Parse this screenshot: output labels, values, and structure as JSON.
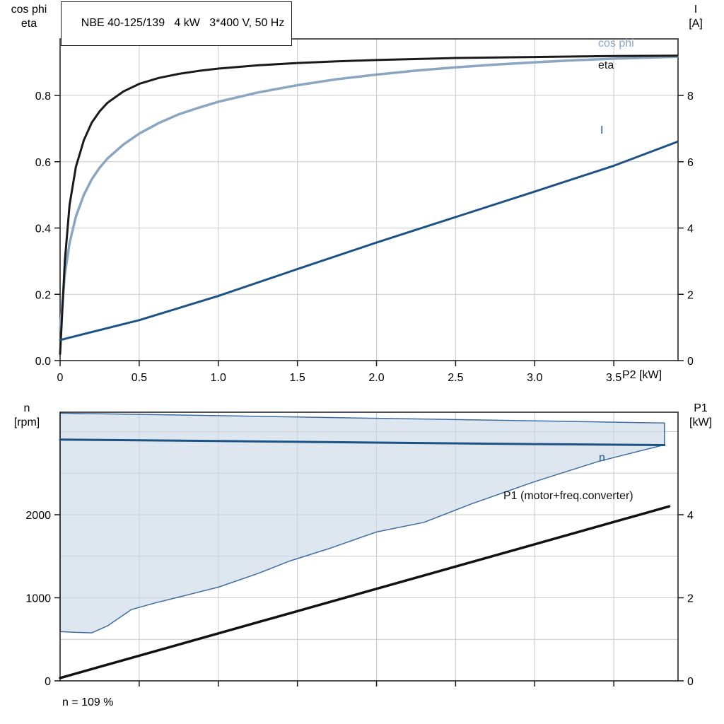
{
  "title": "NBE 40-125/139   4 kW   3*400 V, 50 Hz",
  "footnote": "n = 109 %",
  "axes": {
    "top_left_1": "cos phi",
    "top_left_2": "eta",
    "top_right_1": "I",
    "top_right_2": "[A]",
    "x_label": "P2 [kW]",
    "bottom_left_1": "n",
    "bottom_left_2": "[rpm]",
    "bottom_right_1": "P1",
    "bottom_right_2": "[kW]"
  },
  "curve_labels": {
    "cos_phi": "cos phi",
    "eta": "eta",
    "current": "I",
    "speed": "n",
    "p1": "P1 (motor+freq.converter)"
  },
  "colors": {
    "cos_phi": "#8aa6c1",
    "eta": "#1a1a1a",
    "current": "#1c5284",
    "speed": "#1c5284",
    "p1_line": "#111111",
    "area_fill": "#c8d7e6",
    "area_stroke": "#3d6d9e",
    "grid": "#c9c9c9",
    "frame": "#1a1a1a",
    "text": "#000000"
  },
  "chart_data": [
    {
      "id": "top",
      "type": "line",
      "title": "NBE 40-125/139   4 kW   3*400 V, 50 Hz",
      "xlabel": "P2 [kW]",
      "ylabel_left": "cos phi / eta",
      "ylabel_right": "I [A]",
      "xlim": [
        0,
        3.906
      ],
      "xticks": {
        "values": [
          0,
          0.5,
          1,
          1.5,
          2,
          2.5,
          3,
          3.5
        ],
        "labels": [
          "0",
          "0.5",
          "1.0",
          "1.5",
          "2.0",
          "2.5",
          "3.0",
          "3.5"
        ]
      },
      "ylim_left": [
        0,
        0.9707
      ],
      "yticks_left": {
        "values": [
          0,
          0.2,
          0.4,
          0.6,
          0.8
        ],
        "labels": [
          "0.0",
          "0.2",
          "0.4",
          "0.6",
          "0.8"
        ]
      },
      "ylim_right": [
        0,
        9.707
      ],
      "yticks_right": {
        "values": [
          0,
          2,
          4,
          6,
          8
        ],
        "labels": [
          "0",
          "2",
          "4",
          "6",
          "8"
        ]
      },
      "grid": true,
      "series": [
        {
          "name": "cos phi",
          "axis": "left",
          "color": "#8aa6c1",
          "width": 3.5,
          "points": [
            [
              0,
              0.09
            ],
            [
              0.03,
              0.26
            ],
            [
              0.06,
              0.355
            ],
            [
              0.1,
              0.435
            ],
            [
              0.15,
              0.5
            ],
            [
              0.2,
              0.547
            ],
            [
              0.25,
              0.582
            ],
            [
              0.3,
              0.61
            ],
            [
              0.4,
              0.652
            ],
            [
              0.5,
              0.685
            ],
            [
              0.625,
              0.717
            ],
            [
              0.75,
              0.743
            ],
            [
              0.875,
              0.763
            ],
            [
              1.0,
              0.781
            ],
            [
              1.25,
              0.809
            ],
            [
              1.5,
              0.831
            ],
            [
              1.75,
              0.849
            ],
            [
              2.0,
              0.863
            ],
            [
              2.25,
              0.875
            ],
            [
              2.5,
              0.885
            ],
            [
              2.75,
              0.893
            ],
            [
              3.0,
              0.9
            ],
            [
              3.25,
              0.906
            ],
            [
              3.5,
              0.911
            ],
            [
              3.7,
              0.914
            ],
            [
              3.9,
              0.917
            ]
          ]
        },
        {
          "name": "eta",
          "axis": "left",
          "color": "#1a1a1a",
          "width": 3,
          "points": [
            [
              0,
              0.02
            ],
            [
              0.03,
              0.3
            ],
            [
              0.06,
              0.47
            ],
            [
              0.1,
              0.585
            ],
            [
              0.15,
              0.665
            ],
            [
              0.2,
              0.718
            ],
            [
              0.25,
              0.752
            ],
            [
              0.3,
              0.778
            ],
            [
              0.4,
              0.812
            ],
            [
              0.5,
              0.835
            ],
            [
              0.625,
              0.853
            ],
            [
              0.75,
              0.865
            ],
            [
              0.875,
              0.874
            ],
            [
              1.0,
              0.881
            ],
            [
              1.25,
              0.891
            ],
            [
              1.5,
              0.898
            ],
            [
              1.75,
              0.903
            ],
            [
              2.0,
              0.907
            ],
            [
              2.5,
              0.913
            ],
            [
              3.0,
              0.916
            ],
            [
              3.5,
              0.919
            ],
            [
              3.9,
              0.92
            ]
          ]
        },
        {
          "name": "I",
          "axis": "right",
          "color": "#1c5284",
          "width": 3,
          "points": [
            [
              0,
              0.62
            ],
            [
              0.5,
              1.22
            ],
            [
              1.0,
              1.95
            ],
            [
              1.5,
              2.76
            ],
            [
              2.0,
              3.56
            ],
            [
              2.5,
              4.33
            ],
            [
              3.0,
              5.1
            ],
            [
              3.5,
              5.88
            ],
            [
              3.9,
              6.6
            ]
          ]
        }
      ]
    },
    {
      "id": "bottom",
      "type": "line",
      "xlabel": "",
      "ylabel_left": "n [rpm]",
      "ylabel_right": "P1 [kW]",
      "annotation": "n = 109 %",
      "xlim": [
        0,
        3.906
      ],
      "xticks": {
        "values": [
          0.5,
          1,
          1.5,
          2,
          2.5,
          3,
          3.5
        ],
        "labels": []
      },
      "ylim_left": [
        0,
        3234
      ],
      "yticks_left": {
        "values": [
          0,
          1000,
          2000
        ],
        "labels": [
          "0",
          "1000",
          "2000"
        ]
      },
      "ygrid_left": [
        500,
        1000,
        1500,
        2000,
        2500,
        3000
      ],
      "ylim_right": [
        0,
        6.468
      ],
      "yticks_right": {
        "values": [
          0,
          2,
          4
        ],
        "labels": [
          "0",
          "2",
          "4"
        ]
      },
      "grid": true,
      "area": {
        "name": "speed-operating-range",
        "axis": "left",
        "fill": "#c8d7e6",
        "fill_opacity": 0.6,
        "stroke": "#3d6d9e",
        "stroke_width": 1.5,
        "outline": [
          [
            0,
            3222
          ],
          [
            1.0,
            3192
          ],
          [
            2.0,
            3161
          ],
          [
            3.0,
            3130
          ],
          [
            3.82,
            3104
          ],
          [
            3.82,
            2842
          ],
          [
            3.4,
            2640
          ],
          [
            3.0,
            2398
          ],
          [
            2.6,
            2130
          ],
          [
            2.3,
            1908
          ],
          [
            2.0,
            1792
          ],
          [
            1.7,
            1592
          ],
          [
            1.45,
            1442
          ],
          [
            1.25,
            1292
          ],
          [
            1.0,
            1128
          ],
          [
            0.8,
            1032
          ],
          [
            0.6,
            938
          ],
          [
            0.45,
            858
          ],
          [
            0.3,
            662
          ],
          [
            0.2,
            578
          ],
          [
            0.1,
            584
          ],
          [
            0,
            594
          ]
        ]
      },
      "series": [
        {
          "name": "n",
          "axis": "left",
          "color": "#1c5284",
          "width": 3,
          "points": [
            [
              0,
              2905
            ],
            [
              1.0,
              2888
            ],
            [
              2.0,
              2868
            ],
            [
              3.0,
              2850
            ],
            [
              3.82,
              2838
            ]
          ]
        },
        {
          "name": "P1 (motor+freq.converter)",
          "axis": "right",
          "color": "#111111",
          "width": 3.5,
          "points": [
            [
              0,
              0.07
            ],
            [
              3.85,
              4.2
            ]
          ]
        }
      ]
    }
  ]
}
